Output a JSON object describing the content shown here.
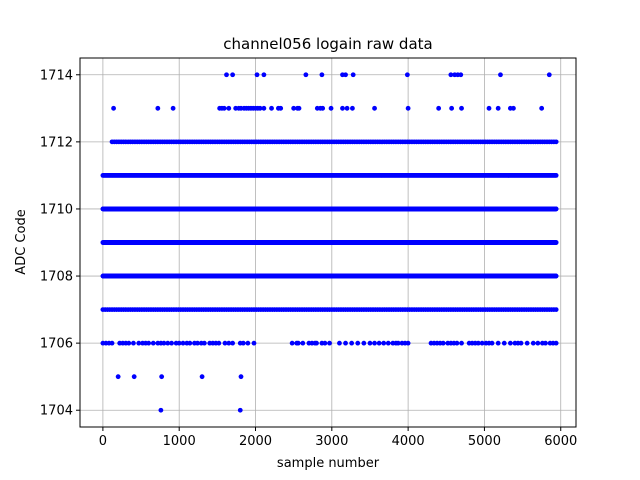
{
  "chart_data": {
    "type": "scatter",
    "title": "channel056 logain raw data",
    "xlabel": "sample number",
    "ylabel": "ADC Code",
    "xlim": [
      -300,
      6200
    ],
    "ylim": [
      1703.5,
      1714.5
    ],
    "xticks": [
      0,
      1000,
      2000,
      3000,
      4000,
      5000,
      6000
    ],
    "yticks": [
      1704,
      1706,
      1708,
      1710,
      1712,
      1714
    ],
    "grid": true,
    "marker_color": "#0000ff",
    "x_range": [
      0,
      5940
    ],
    "dense_levels": [
      {
        "y": 1707,
        "step": 30
      },
      {
        "y": 1708,
        "step": 4
      },
      {
        "y": 1709,
        "step": 4
      },
      {
        "y": 1710,
        "step": 4
      },
      {
        "y": 1711,
        "step": 12
      }
    ],
    "sparse_points": [
      {
        "y": 1714,
        "x": [
          1620,
          1700,
          2020,
          2110,
          2660,
          2870,
          3140,
          3180,
          3280,
          3990,
          4560,
          4610,
          4650,
          4690,
          5210,
          5850
        ]
      },
      {
        "y": 1713,
        "x": [
          140,
          720,
          920,
          1530,
          1560,
          1590,
          1650,
          1740,
          1780,
          1810,
          1850,
          1880,
          1910,
          1940,
          1970,
          2000,
          2030,
          2060,
          2110,
          2210,
          2300,
          2330,
          2500,
          2550,
          2570,
          2810,
          2850,
          2880,
          2990,
          3140,
          3200,
          3270,
          3560,
          4000,
          4400,
          4570,
          4700,
          5060,
          5180,
          5340,
          5380,
          5750
        ],
        "x_from": 0,
        "x_to": 0,
        "step": 0
      },
      {
        "y": 1712,
        "x": [],
        "x_from": 120,
        "x_to": 5940,
        "step": 30
      },
      {
        "y": 1706,
        "x": [
          0,
          40,
          80,
          120,
          220,
          260,
          300,
          340,
          400,
          470,
          520,
          560,
          600,
          660,
          720,
          760,
          800,
          850,
          900,
          960,
          1000,
          1050,
          1100,
          1140,
          1200,
          1240,
          1290,
          1330,
          1400,
          1440,
          1480,
          1520,
          1600,
          1650,
          1700,
          1800,
          1840,
          1900,
          1980,
          2480,
          2540,
          2560,
          2620,
          2700,
          2740,
          2780,
          2800,
          2870,
          2910,
          2970,
          3100,
          3180,
          3260,
          3340,
          3420,
          3500,
          3560,
          3620,
          3680,
          3740,
          3800,
          3840,
          3870,
          3920,
          3960,
          4000,
          4300,
          4340,
          4380,
          4420,
          4460,
          4520,
          4560,
          4600,
          4640,
          4700,
          4800,
          4840,
          4880,
          4920,
          4970,
          5020,
          5060,
          5100,
          5180,
          5260,
          5340,
          5400,
          5440,
          5480,
          5560,
          5640,
          5700,
          5760,
          5800,
          5860,
          5900,
          5940
        ]
      },
      {
        "y": 1705,
        "x": [
          200,
          410,
          770,
          1300,
          1810
        ]
      },
      {
        "y": 1704,
        "x": [
          760,
          1800
        ]
      }
    ]
  }
}
